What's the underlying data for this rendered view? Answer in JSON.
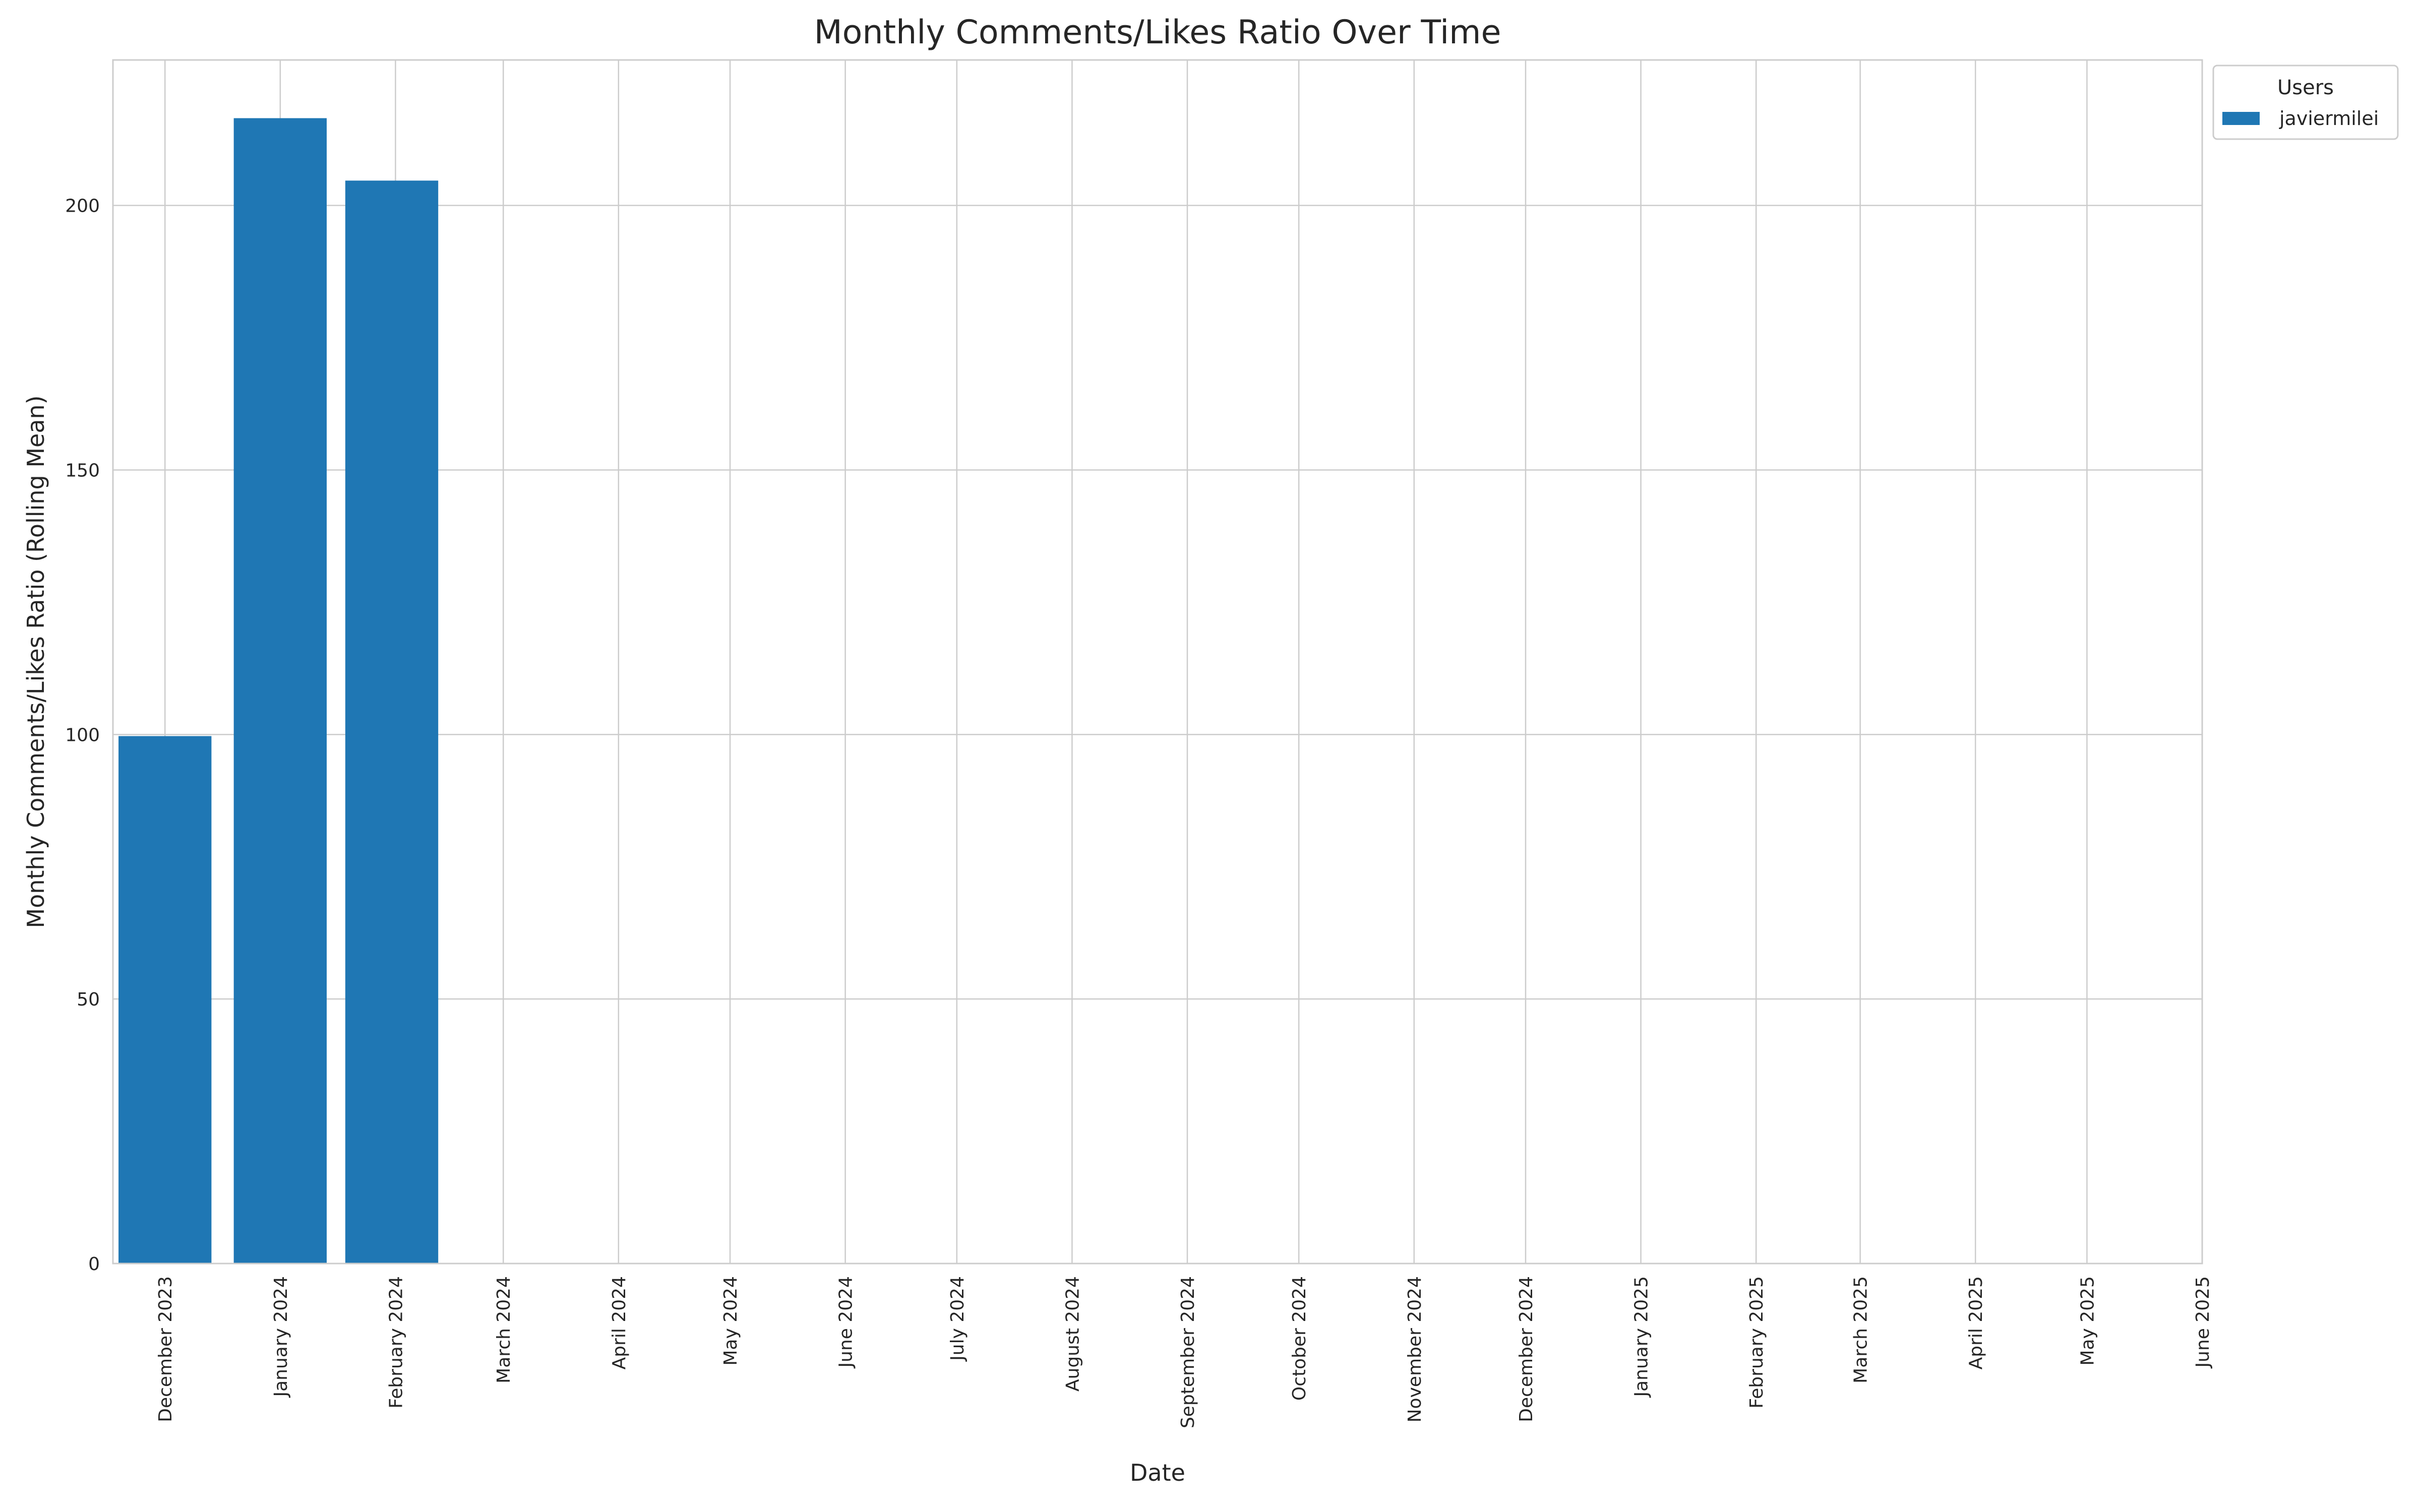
{
  "chart_data": {
    "type": "bar",
    "title": "Monthly Comments/Likes Ratio Over Time",
    "xlabel": "Date",
    "ylabel": "Monthly Comments/Likes Ratio (Rolling Mean)",
    "x_type": "date",
    "xlim": [
      "2023-11-17",
      "2025-06-01"
    ],
    "ylim": [
      0,
      227.5
    ],
    "yticks": [
      0,
      50,
      100,
      150,
      200
    ],
    "xticks": [
      {
        "date": "2023-12-01",
        "label": "December 2023"
      },
      {
        "date": "2024-01-01",
        "label": "January 2024"
      },
      {
        "date": "2024-02-01",
        "label": "February 2024"
      },
      {
        "date": "2024-03-01",
        "label": "March 2024"
      },
      {
        "date": "2024-04-01",
        "label": "April 2024"
      },
      {
        "date": "2024-05-01",
        "label": "May 2024"
      },
      {
        "date": "2024-06-01",
        "label": "June 2024"
      },
      {
        "date": "2024-07-01",
        "label": "July 2024"
      },
      {
        "date": "2024-08-01",
        "label": "August 2024"
      },
      {
        "date": "2024-09-01",
        "label": "September 2024"
      },
      {
        "date": "2024-10-01",
        "label": "October 2024"
      },
      {
        "date": "2024-11-01",
        "label": "November 2024"
      },
      {
        "date": "2024-12-01",
        "label": "December 2024"
      },
      {
        "date": "2025-01-01",
        "label": "January 2025"
      },
      {
        "date": "2025-02-01",
        "label": "February 2025"
      },
      {
        "date": "2025-03-01",
        "label": "March 2025"
      },
      {
        "date": "2025-04-01",
        "label": "April 2025"
      },
      {
        "date": "2025-05-01",
        "label": "May 2025"
      },
      {
        "date": "2025-06-01",
        "label": "June 2025"
      }
    ],
    "series": [
      {
        "name": "javiermilei",
        "color": "#1f77b4",
        "points": [
          {
            "date": "2023-12-01",
            "value": 99.7
          },
          {
            "date": "2024-01-01",
            "value": 216.5
          },
          {
            "date": "2024-01-31",
            "value": 204.7
          }
        ]
      }
    ],
    "legend": {
      "title": "Users",
      "placement": "top-right, outside plot"
    },
    "grid": true
  }
}
